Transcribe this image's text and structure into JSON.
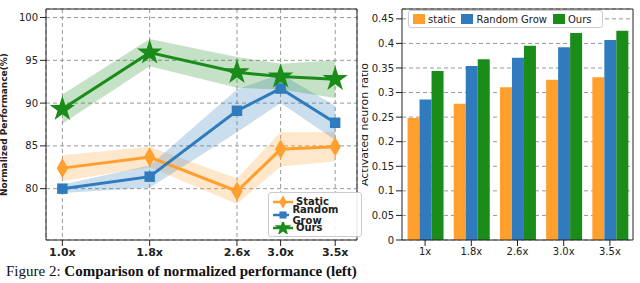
{
  "caption": {
    "label": "Figure 2:",
    "text": "Comparison of normalized performance (left)"
  },
  "chart_data": [
    {
      "type": "line",
      "y_label": "Normalized Performance(%)",
      "x": [
        1.0,
        1.8,
        2.6,
        3.0,
        3.5
      ],
      "xlim": [
        0.85,
        3.7
      ],
      "xticks": [
        {
          "value": 1.0,
          "label": "1.0x"
        },
        {
          "value": 1.8,
          "label": "1.8x"
        },
        {
          "value": 2.6,
          "label": "2.6x"
        },
        {
          "value": 3.0,
          "label": "3.0x"
        },
        {
          "value": 3.5,
          "label": "3.5x"
        }
      ],
      "ylim": [
        74,
        101
      ],
      "yticks": [
        80,
        85,
        90,
        95,
        100
      ],
      "grid": true,
      "legend": "lower right",
      "series": [
        {
          "name": "Static",
          "color": "#ff9f2e",
          "marker": "diamond",
          "values": [
            82.4,
            83.7,
            79.7,
            84.6,
            84.9
          ],
          "error": [
            1.5,
            1.2,
            1.5,
            2.0,
            1.7
          ]
        },
        {
          "name": "Random Grow",
          "color": "#2f7bbd",
          "marker": "square",
          "values": [
            80.0,
            81.4,
            89.1,
            91.7,
            87.7
          ],
          "error": [
            0.5,
            1.3,
            2.5,
            1.7,
            2.0
          ]
        },
        {
          "name": "Ours",
          "color": "#1a8c1a",
          "marker": "star",
          "values": [
            89.3,
            95.9,
            93.6,
            93.1,
            92.8
          ],
          "error": [
            1.7,
            1.6,
            1.8,
            1.5,
            2.2
          ]
        }
      ]
    },
    {
      "type": "bar",
      "y_label": "Activated neuron ratio",
      "categories": [
        "1x",
        "1.8x",
        "2.6x",
        "3.0x",
        "3.5x"
      ],
      "ylim": [
        0,
        0.47
      ],
      "yticks": [
        0,
        0.05,
        0.1,
        0.15,
        0.2,
        0.25,
        0.3,
        0.35,
        0.4,
        0.45
      ],
      "grid": true,
      "legend": "upper left",
      "series": [
        {
          "name": "static",
          "color": "#ff9f2e",
          "values": [
            0.248,
            0.277,
            0.311,
            0.326,
            0.331
          ]
        },
        {
          "name": "Random Grow",
          "color": "#2f7bbd",
          "values": [
            0.286,
            0.354,
            0.371,
            0.392,
            0.407
          ]
        },
        {
          "name": "Ours",
          "color": "#1a8c1a",
          "values": [
            0.344,
            0.368,
            0.395,
            0.421,
            0.426
          ]
        }
      ]
    }
  ]
}
